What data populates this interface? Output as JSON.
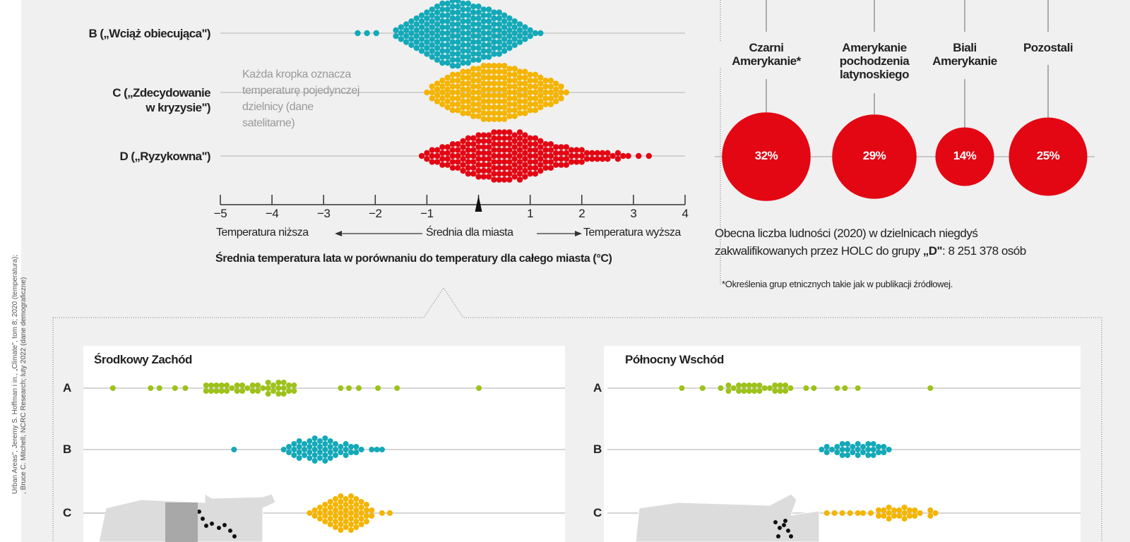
{
  "source": {
    "line1": "Urban Areas\", Jeremy S. Hoffman i in., „Climate\", tom 8; 2020 (temperatura);",
    "line2": ", Bruce C. Mitchell, NCRC Research; luty 2022 (dane demograficzne)"
  },
  "colors": {
    "A": "#9dc21a",
    "B": "#13a9b8",
    "C": "#f4b400",
    "D": "#e30613",
    "bg": "#f0f0f0"
  },
  "annotation": [
    "Każda kropka oznacza",
    "temperaturę pojedynczej",
    "dzielnicy (dane",
    "satelitarne)"
  ],
  "axis_arrows": {
    "lower": "Temperatura niższa",
    "mid": "Średnia dla miasta",
    "higher": "Temperatura wyższa"
  },
  "population": {
    "line1": "Obecna liczba ludności (2020) w dzielnicach niegdyś",
    "line2_pre": "zakwalifikowanych przez HOLC do grupy ",
    "line2_bold": "„D\"",
    "line2_post": ": 8 251 378 osób"
  },
  "footnote": "*Określenia grup etnicznych takie jak w publikacji źródłowej.",
  "chart_data": [
    {
      "type": "scatter",
      "subtype": "beeswarm",
      "title": "Średnia temperatura lata w porównaniu do temperatury dla całego miasta (°C)",
      "xlim": [
        -5,
        4
      ],
      "xticks": [
        "−5",
        "−4",
        "−3",
        "−2",
        "−1",
        "",
        "1",
        "2",
        "3",
        "4"
      ],
      "reference": 0,
      "rows": [
        {
          "label": [
            "B („Wciąż obiecująca\")"
          ],
          "color": "#13a9b8",
          "bins": [
            [
              -2.34,
              1
            ],
            [
              -2.16,
              1
            ],
            [
              -1.98,
              1
            ],
            [
              -1.6,
              2
            ],
            [
              -1.5,
              3
            ],
            [
              -1.4,
              4
            ],
            [
              -1.3,
              5
            ],
            [
              -1.2,
              6
            ],
            [
              -1.1,
              7
            ],
            [
              -1.0,
              8
            ],
            [
              -0.9,
              9
            ],
            [
              -0.8,
              10
            ],
            [
              -0.7,
              11
            ],
            [
              -0.6,
              11
            ],
            [
              -0.5,
              12
            ],
            [
              -0.4,
              12
            ],
            [
              -0.3,
              11
            ],
            [
              -0.2,
              11
            ],
            [
              -0.1,
              10
            ],
            [
              0,
              10
            ],
            [
              0.1,
              9
            ],
            [
              0.2,
              9
            ],
            [
              0.3,
              8
            ],
            [
              0.4,
              8
            ],
            [
              0.5,
              7
            ],
            [
              0.6,
              6
            ],
            [
              0.7,
              5
            ],
            [
              0.8,
              4
            ],
            [
              0.9,
              3
            ],
            [
              1.0,
              2
            ],
            [
              1.1,
              1
            ],
            [
              1.2,
              1
            ]
          ]
        },
        {
          "label": [
            "C („Zdecydowanie",
            "w kryzysie\")"
          ],
          "color": "#f4b400",
          "bins": [
            [
              -1.0,
              1
            ],
            [
              -0.9,
              3
            ],
            [
              -0.8,
              4
            ],
            [
              -0.7,
              5
            ],
            [
              -0.6,
              6
            ],
            [
              -0.5,
              7
            ],
            [
              -0.4,
              7
            ],
            [
              -0.3,
              8
            ],
            [
              -0.2,
              8
            ],
            [
              -0.1,
              9
            ],
            [
              0,
              9
            ],
            [
              0.1,
              10
            ],
            [
              0.2,
              10
            ],
            [
              0.3,
              10
            ],
            [
              0.4,
              10
            ],
            [
              0.5,
              10
            ],
            [
              0.6,
              9
            ],
            [
              0.7,
              9
            ],
            [
              0.8,
              8
            ],
            [
              0.9,
              8
            ],
            [
              1.0,
              7
            ],
            [
              1.1,
              7
            ],
            [
              1.2,
              6
            ],
            [
              1.3,
              5
            ],
            [
              1.4,
              5
            ],
            [
              1.5,
              4
            ],
            [
              1.6,
              3
            ],
            [
              1.7,
              1
            ]
          ]
        },
        {
          "label": [
            "D („Ryzykowna\")"
          ],
          "color": "#e30613",
          "bins": [
            [
              -1.1,
              1
            ],
            [
              -1.0,
              2
            ],
            [
              -0.9,
              3
            ],
            [
              -0.8,
              3
            ],
            [
              -0.7,
              4
            ],
            [
              -0.6,
              4
            ],
            [
              -0.5,
              5
            ],
            [
              -0.4,
              5
            ],
            [
              -0.3,
              6
            ],
            [
              -0.2,
              7
            ],
            [
              -0.1,
              7
            ],
            [
              0,
              8
            ],
            [
              0.1,
              8
            ],
            [
              0.2,
              8
            ],
            [
              0.3,
              9
            ],
            [
              0.4,
              9
            ],
            [
              0.5,
              9
            ],
            [
              0.6,
              9
            ],
            [
              0.7,
              8
            ],
            [
              0.8,
              9
            ],
            [
              0.9,
              8
            ],
            [
              1.0,
              7
            ],
            [
              1.1,
              7
            ],
            [
              1.2,
              6
            ],
            [
              1.3,
              5
            ],
            [
              1.4,
              5
            ],
            [
              1.5,
              4
            ],
            [
              1.6,
              4
            ],
            [
              1.7,
              4
            ],
            [
              1.8,
              3
            ],
            [
              1.9,
              3
            ],
            [
              2.0,
              3
            ],
            [
              2.1,
              2
            ],
            [
              2.2,
              2
            ],
            [
              2.3,
              2
            ],
            [
              2.4,
              2
            ],
            [
              2.5,
              2
            ],
            [
              2.6,
              1
            ],
            [
              2.7,
              2
            ],
            [
              2.8,
              1
            ],
            [
              2.9,
              1
            ],
            [
              3.1,
              1
            ],
            [
              3.3,
              1
            ]
          ]
        }
      ]
    },
    {
      "type": "bubble",
      "groups": [
        {
          "label": [
            "Czarni",
            "Amerykanie*"
          ],
          "value": 32,
          "text": "32%"
        },
        {
          "label": [
            "Amerykanie",
            "pochodzenia",
            "latynoskiego"
          ],
          "value": 29,
          "text": "29%"
        },
        {
          "label": [
            "Biali",
            "Amerykanie"
          ],
          "value": 14,
          "text": "14%"
        },
        {
          "label": [
            "Pozostali"
          ],
          "value": 25,
          "text": "25%"
        }
      ]
    },
    {
      "type": "scatter",
      "subtype": "beeswarm",
      "title": "Środkowy Zachód",
      "xlim": [
        -5,
        4
      ],
      "rows": [
        {
          "label": "A",
          "color": "#9dc21a",
          "bins": [
            [
              -4.6,
              1
            ],
            [
              -3.87,
              1
            ],
            [
              -3.7,
              1
            ],
            [
              -3.4,
              1
            ],
            [
              -3.2,
              1
            ],
            [
              -2.8,
              2
            ],
            [
              -2.7,
              2
            ],
            [
              -2.6,
              2
            ],
            [
              -2.5,
              2
            ],
            [
              -2.4,
              2
            ],
            [
              -2.3,
              1
            ],
            [
              -2.2,
              2
            ],
            [
              -2.1,
              2
            ],
            [
              -2.0,
              1
            ],
            [
              -1.9,
              2
            ],
            [
              -1.8,
              2
            ],
            [
              -1.7,
              1
            ],
            [
              -1.6,
              3
            ],
            [
              -1.5,
              2
            ],
            [
              -1.4,
              3
            ],
            [
              -1.3,
              3
            ],
            [
              -1.2,
              2
            ],
            [
              -1.1,
              2
            ],
            [
              -0.2,
              1
            ],
            [
              -0.04,
              1
            ],
            [
              0.15,
              1
            ],
            [
              0.52,
              1
            ],
            [
              0.89,
              1
            ],
            [
              2.47,
              1
            ]
          ]
        },
        {
          "label": "B",
          "color": "#13a9b8",
          "bins": [
            [
              -2.26,
              1
            ],
            [
              -1.3,
              1
            ],
            [
              -1.2,
              2
            ],
            [
              -1.1,
              3
            ],
            [
              -1.0,
              4
            ],
            [
              -0.9,
              3
            ],
            [
              -0.8,
              4
            ],
            [
              -0.7,
              5
            ],
            [
              -0.6,
              4
            ],
            [
              -0.5,
              5
            ],
            [
              -0.4,
              4
            ],
            [
              -0.3,
              3
            ],
            [
              -0.2,
              2
            ],
            [
              -0.1,
              3
            ],
            [
              0.0,
              2
            ],
            [
              0.1,
              2
            ],
            [
              0.2,
              1
            ],
            [
              0.4,
              1
            ],
            [
              0.5,
              1
            ],
            [
              0.6,
              1
            ]
          ]
        },
        {
          "label": "C",
          "color": "#f4b400",
          "bins": [
            [
              -0.8,
              1
            ],
            [
              -0.7,
              2
            ],
            [
              -0.6,
              3
            ],
            [
              -0.5,
              4
            ],
            [
              -0.4,
              5
            ],
            [
              -0.3,
              6
            ],
            [
              -0.2,
              7
            ],
            [
              -0.1,
              6
            ],
            [
              0.0,
              7
            ],
            [
              0.1,
              6
            ],
            [
              0.2,
              5
            ],
            [
              0.3,
              4
            ],
            [
              0.4,
              2
            ],
            [
              0.6,
              1
            ],
            [
              0.75,
              1
            ]
          ]
        }
      ]
    },
    {
      "type": "scatter",
      "subtype": "beeswarm",
      "title": "Północny Wschód",
      "xlim": [
        -5,
        4
      ],
      "rows": [
        {
          "label": "A",
          "color": "#9dc21a",
          "bins": [
            [
              -3.2,
              1
            ],
            [
              -2.8,
              1
            ],
            [
              -2.45,
              1
            ],
            [
              -2.3,
              2
            ],
            [
              -2.2,
              1
            ],
            [
              -2.1,
              2
            ],
            [
              -2.0,
              2
            ],
            [
              -1.9,
              2
            ],
            [
              -1.8,
              2
            ],
            [
              -1.7,
              2
            ],
            [
              -1.6,
              1
            ],
            [
              -1.5,
              1
            ],
            [
              -1.4,
              2
            ],
            [
              -1.3,
              2
            ],
            [
              -1.2,
              2
            ],
            [
              -1.1,
              1
            ],
            [
              -0.8,
              1
            ],
            [
              -0.65,
              1
            ],
            [
              -0.2,
              1
            ],
            [
              -0.05,
              1
            ],
            [
              0.2,
              1
            ],
            [
              1.6,
              1
            ]
          ]
        },
        {
          "label": "B",
          "color": "#13a9b8",
          "bins": [
            [
              -0.5,
              1
            ],
            [
              -0.4,
              2
            ],
            [
              -0.3,
              1
            ],
            [
              -0.2,
              2
            ],
            [
              -0.1,
              3
            ],
            [
              0.0,
              3
            ],
            [
              0.1,
              2
            ],
            [
              0.2,
              3
            ],
            [
              0.3,
              2
            ],
            [
              0.4,
              3
            ],
            [
              0.5,
              3
            ],
            [
              0.6,
              2
            ],
            [
              0.7,
              2
            ],
            [
              0.8,
              1
            ]
          ]
        },
        {
          "label": "C",
          "color": "#f4b400",
          "bins": [
            [
              -0.4,
              1
            ],
            [
              -0.25,
              1
            ],
            [
              -0.1,
              1
            ],
            [
              0.05,
              1
            ],
            [
              0.2,
              1
            ],
            [
              0.3,
              1
            ],
            [
              0.45,
              1
            ],
            [
              0.6,
              2
            ],
            [
              0.7,
              2
            ],
            [
              0.8,
              3
            ],
            [
              0.9,
              2
            ],
            [
              1.0,
              2
            ],
            [
              1.1,
              3
            ],
            [
              1.2,
              2
            ],
            [
              1.3,
              2
            ],
            [
              1.4,
              1
            ],
            [
              1.6,
              2
            ],
            [
              1.7,
              1
            ]
          ]
        }
      ]
    }
  ]
}
